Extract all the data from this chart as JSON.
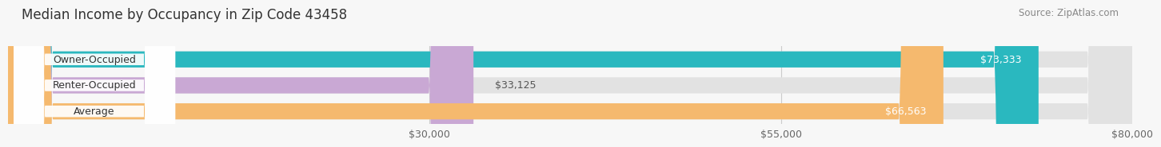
{
  "title": "Median Income by Occupancy in Zip Code 43458",
  "source": "Source: ZipAtlas.com",
  "categories": [
    "Owner-Occupied",
    "Renter-Occupied",
    "Average"
  ],
  "values": [
    73333,
    33125,
    66563
  ],
  "bar_colors": [
    "#2ab8bf",
    "#c9a8d4",
    "#f5b96e"
  ],
  "xlim": [
    0,
    80000
  ],
  "xticks": [
    30000,
    55000,
    80000
  ],
  "xtick_labels": [
    "$30,000",
    "$55,000",
    "$80,000"
  ],
  "bar_height": 0.62,
  "background_color": "#f7f7f7",
  "bar_bg_color": "#e2e2e2",
  "title_fontsize": 12,
  "source_fontsize": 8.5,
  "label_fontsize": 9,
  "value_fontsize": 9,
  "tick_fontsize": 9,
  "label_pill_color": "#ffffff",
  "label_text_color": "#333333"
}
